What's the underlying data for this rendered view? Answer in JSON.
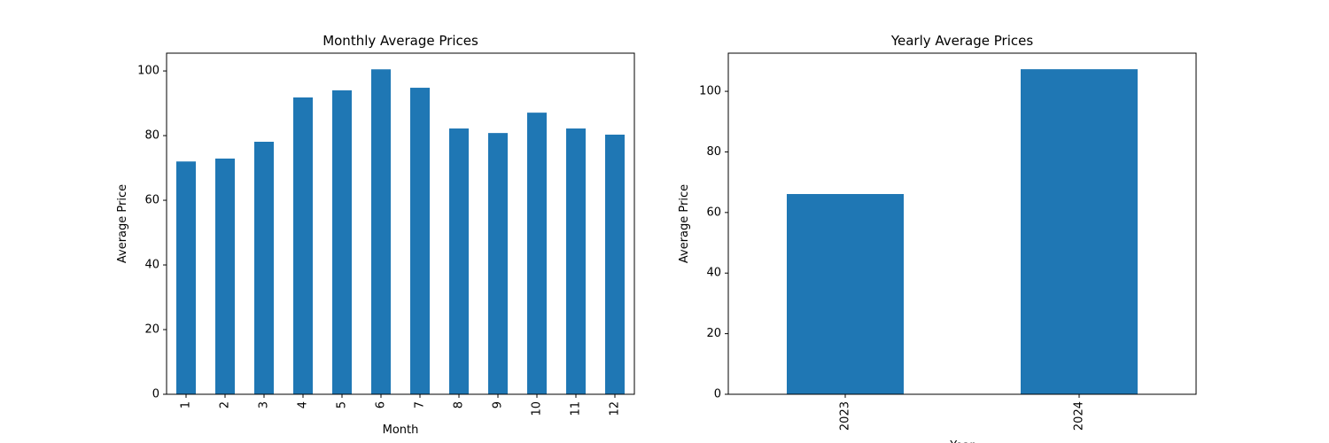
{
  "chart_data": [
    {
      "type": "bar",
      "title": "Monthly Average Prices",
      "x_label": "Month",
      "y_label": "Average Price",
      "categories": [
        "1",
        "2",
        "3",
        "4",
        "5",
        "6",
        "7",
        "8",
        "9",
        "10",
        "11",
        "12"
      ],
      "values": [
        72.0,
        72.9,
        78.1,
        91.8,
        94.0,
        100.5,
        94.8,
        82.2,
        80.8,
        87.1,
        82.2,
        80.3
      ],
      "color": "#1f77b4",
      "ylim": [
        0,
        105.5
      ],
      "yticks": [
        0,
        20,
        40,
        60,
        80,
        100
      ]
    },
    {
      "type": "bar",
      "title": "Yearly Average Prices",
      "x_label": "Year",
      "y_label": "Average Price",
      "categories": [
        "2023",
        "2024"
      ],
      "values": [
        66.1,
        107.3
      ],
      "color": "#1f77b4",
      "ylim": [
        0,
        112.6
      ],
      "yticks": [
        0,
        20,
        40,
        60,
        80,
        100
      ]
    }
  ]
}
